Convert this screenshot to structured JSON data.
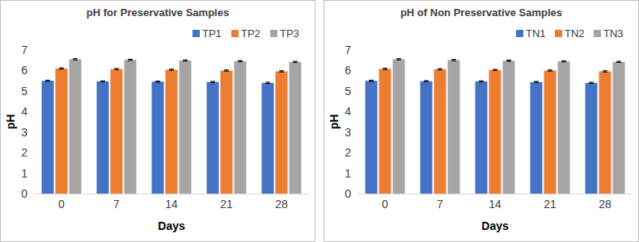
{
  "chart_data": [
    {
      "type": "bar",
      "title": "pH for Preservative Samples",
      "x_label": "Days",
      "y_label": "pH",
      "categories": [
        "0",
        "7",
        "14",
        "21",
        "28"
      ],
      "series": [
        {
          "name": "TP1",
          "color": "#4472c4",
          "values": [
            5.5,
            5.47,
            5.46,
            5.44,
            5.4
          ],
          "errors": [
            0.03,
            0.03,
            0.03,
            0.03,
            0.03
          ]
        },
        {
          "name": "TP2",
          "color": "#ed7d31",
          "values": [
            6.1,
            6.07,
            6.04,
            6.0,
            5.96
          ],
          "errors": [
            0.03,
            0.03,
            0.03,
            0.03,
            0.03
          ]
        },
        {
          "name": "TP3",
          "color": "#a5a5a5",
          "values": [
            6.55,
            6.52,
            6.49,
            6.46,
            6.42
          ],
          "errors": [
            0.03,
            0.03,
            0.03,
            0.03,
            0.03
          ]
        }
      ],
      "ylim": [
        0,
        7
      ],
      "yticks": [
        0,
        1,
        2,
        3,
        4,
        5,
        6,
        7
      ],
      "grid": false,
      "legend": "top-right"
    },
    {
      "type": "bar",
      "title": "pH of Non Preservative Samples",
      "x_label": "Days",
      "y_label": "pH",
      "categories": [
        "0",
        "7",
        "14",
        "21",
        "28"
      ],
      "series": [
        {
          "name": "TN1",
          "color": "#4472c4",
          "values": [
            5.5,
            5.48,
            5.47,
            5.44,
            5.4
          ],
          "errors": [
            0.03,
            0.03,
            0.03,
            0.03,
            0.03
          ]
        },
        {
          "name": "TN2",
          "color": "#ed7d31",
          "values": [
            6.08,
            6.06,
            6.03,
            6.0,
            5.96
          ],
          "errors": [
            0.03,
            0.03,
            0.03,
            0.03,
            0.03
          ]
        },
        {
          "name": "TN3",
          "color": "#a5a5a5",
          "values": [
            6.55,
            6.51,
            6.48,
            6.45,
            6.42
          ],
          "errors": [
            0.03,
            0.03,
            0.03,
            0.03,
            0.03
          ]
        }
      ],
      "ylim": [
        0,
        7
      ],
      "yticks": [
        0,
        1,
        2,
        3,
        4,
        5,
        6,
        7
      ],
      "grid": false,
      "legend": "top-right"
    }
  ]
}
